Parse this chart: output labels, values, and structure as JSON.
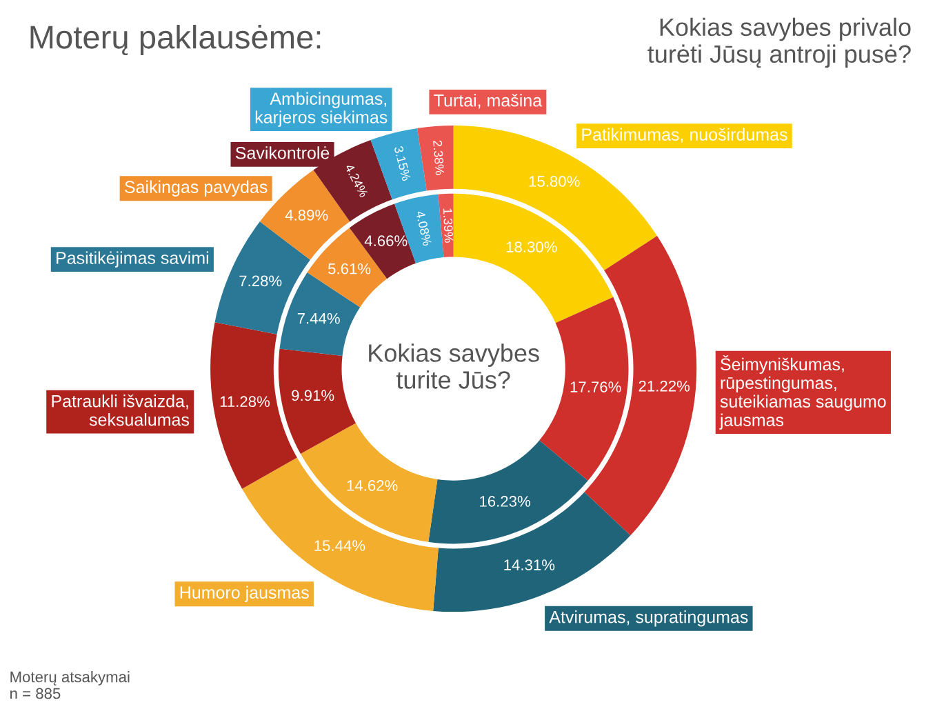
{
  "chart_data": {
    "type": "donut",
    "annotations": [
      "Moterų paklausėme:",
      "Moterų atsakymai\nn = 885"
    ],
    "categories": [
      "Patikimumas, nuoširdumas",
      "Šeimyniškumas,\nrūpestingumas,\nsuteikiamas saugumo\njausmas",
      "Atvirumas, supratingumas",
      "Humoro jausmas",
      "Patraukli išvaizda,\nseksualumas",
      "Pasitikėjimas savimi",
      "Saikingas pavydas",
      "Savikontrolė",
      "Ambicingumas,\nkarjeros siekimas",
      "Turtai, mašina"
    ],
    "colors": [
      "#fcd000",
      "#d0302c",
      "#1f6478",
      "#f2ae2c",
      "#b0231c",
      "#2a7896",
      "#f2902e",
      "#7c1e28",
      "#3aa6d4",
      "#ea5550"
    ],
    "series": [
      {
        "name": "Kokias savybes privalo\nturėti Jūsų antroji pusė?",
        "values": [
          15.8,
          21.22,
          14.31,
          15.44,
          11.28,
          7.28,
          4.89,
          4.24,
          3.15,
          2.38
        ],
        "value_labels": [
          "15.80%",
          "21.22%",
          "14.31%",
          "15.44%",
          "11.28%",
          "7.28%",
          "4.89%",
          "4.24%",
          "3.15%",
          "2.38%"
        ]
      },
      {
        "name": "Kokias savybes\nturite Jūs?",
        "values": [
          18.3,
          17.76,
          16.23,
          14.62,
          9.91,
          7.44,
          5.61,
          4.66,
          4.08,
          1.39
        ],
        "value_labels": [
          "18.30%",
          "17.76%",
          "16.23%",
          "14.62%",
          "9.91%",
          "7.44%",
          "5.61%",
          "4.66%",
          "4.08%",
          "1.39%"
        ]
      }
    ]
  }
}
